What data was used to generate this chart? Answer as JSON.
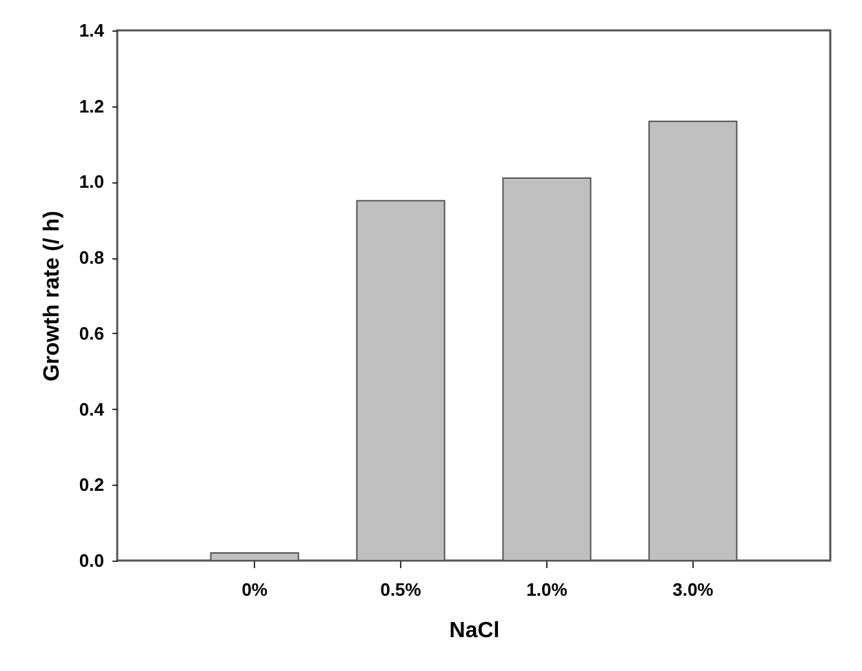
{
  "chart_data": {
    "type": "bar",
    "xlabel": "NaCl",
    "ylabel": "Growth rate (/ h)",
    "categories": [
      "0%",
      "0.5%",
      "1.0%",
      "3.0%"
    ],
    "values": [
      0.02,
      0.95,
      1.01,
      1.16
    ],
    "color": "#c0c0c0",
    "ylim": [
      0,
      1.4
    ],
    "yticks": [
      {
        "value": 0,
        "label": "0.0"
      },
      0.2,
      0.4,
      0.6,
      0.8,
      {
        "value": 1,
        "label": "1.0"
      },
      1.2,
      1.4
    ],
    "grid": false
  }
}
